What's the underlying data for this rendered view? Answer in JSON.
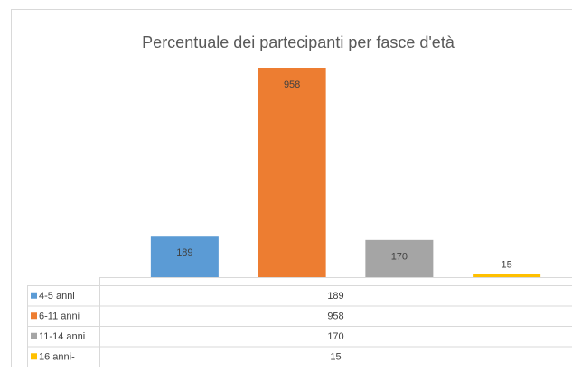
{
  "chart_data": {
    "type": "bar",
    "title": "Percentuale dei partecipanti per fasce d'età",
    "categories": [
      "4-5 anni",
      "6-11 anni",
      "11-14 anni",
      "16 anni-"
    ],
    "values": [
      189,
      958,
      170,
      15
    ],
    "colors": [
      "#5b9bd5",
      "#ed7d31",
      "#a5a5a5",
      "#ffc000"
    ]
  }
}
